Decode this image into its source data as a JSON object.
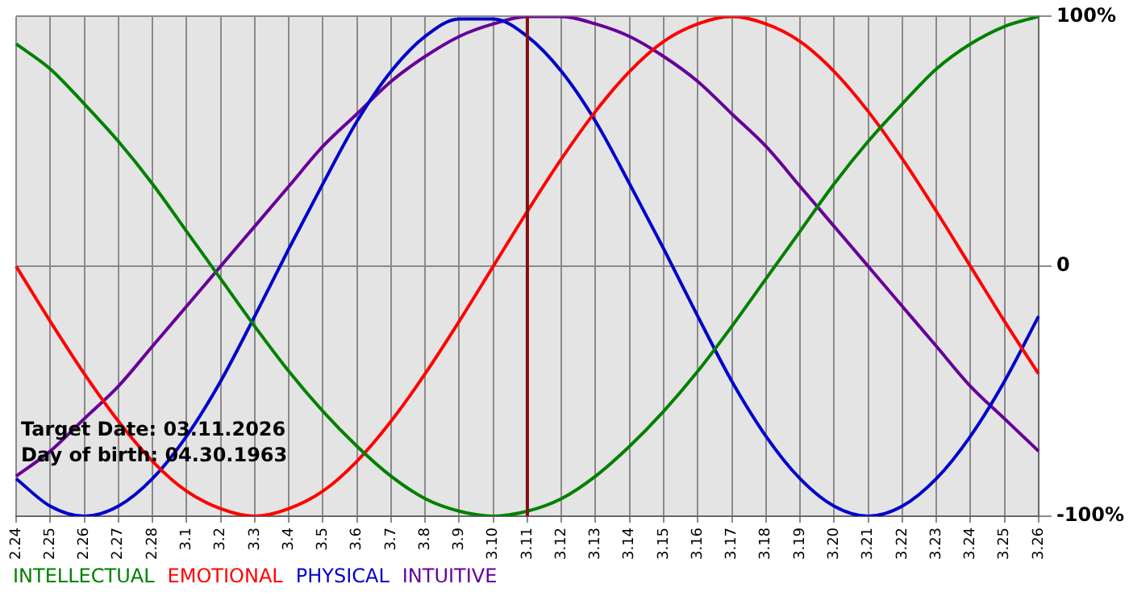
{
  "chart_data": {
    "type": "line",
    "categories": [
      "2.24",
      "2.25",
      "2.26",
      "2.27",
      "2.28",
      "3.1",
      "3.2",
      "3.3",
      "3.4",
      "3.5",
      "3.6",
      "3.7",
      "3.8",
      "3.9",
      "3.10",
      "3.11",
      "3.12",
      "3.13",
      "3.14",
      "3.15",
      "3.16",
      "3.17",
      "3.18",
      "3.19",
      "3.20",
      "3.21",
      "3.22",
      "3.23",
      "3.24",
      "3.25",
      "3.26"
    ],
    "series": [
      {
        "name": "INTELLECTUAL",
        "color": "#008000",
        "values": [
          89,
          79,
          65,
          50,
          33,
          14,
          -5,
          -24,
          -42,
          -58,
          -72,
          -84,
          -93,
          -98,
          -100,
          -98,
          -93,
          -84,
          -72,
          -58,
          -42,
          -24,
          -5,
          14,
          33,
          50,
          65,
          79,
          89,
          96,
          100
        ]
      },
      {
        "name": "EMOTIONAL",
        "color": "#ff0000",
        "values": [
          0,
          -22,
          -43,
          -62,
          -78,
          -90,
          -97,
          -100,
          -97,
          -90,
          -78,
          -62,
          -43,
          -22,
          0,
          22,
          43,
          62,
          78,
          90,
          97,
          100,
          97,
          90,
          78,
          62,
          43,
          22,
          0,
          -22,
          -43
        ]
      },
      {
        "name": "PHYSICAL",
        "color": "#0000cc",
        "values": [
          -85,
          -96,
          -100,
          -96,
          -85,
          -68,
          -46,
          -20,
          7,
          33,
          58,
          78,
          92,
          99,
          99,
          92,
          78,
          58,
          33,
          7,
          -20,
          -46,
          -68,
          -85,
          -96,
          -100,
          -96,
          -85,
          -68,
          -46,
          -20
        ]
      },
      {
        "name": "INTUITIVE",
        "color": "#660099",
        "values": [
          -84,
          -74,
          -61,
          -48,
          -32,
          -16,
          0,
          16,
          32,
          48,
          61,
          74,
          84,
          92,
          97,
          100,
          100,
          97,
          92,
          84,
          74,
          61,
          48,
          32,
          16,
          0,
          -16,
          -32,
          -48,
          -61,
          -74
        ]
      }
    ],
    "ylim": [
      -100,
      100
    ],
    "yticks": [
      {
        "value": -100,
        "label": "-100%"
      },
      {
        "value": 0,
        "label": "0"
      },
      {
        "value": 100,
        "label": "100%"
      }
    ],
    "ref_lines": [
      {
        "axis": "x",
        "value": "3.11",
        "color": "#801010"
      }
    ],
    "annotations": [
      "Target Date: 03.11.2026",
      "Day of birth: 04.30.1963"
    ],
    "grid": true,
    "legend": "bottom left",
    "marker": "none"
  }
}
